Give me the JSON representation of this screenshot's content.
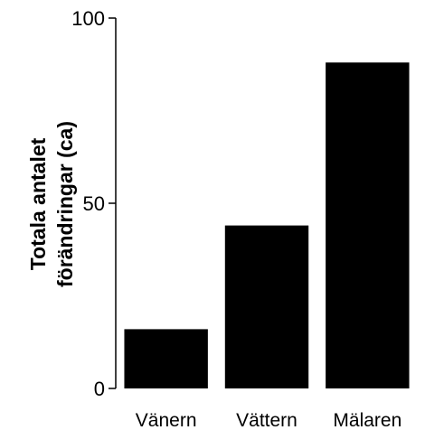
{
  "chart_data": {
    "type": "bar",
    "categories": [
      "Vänern",
      "Vättern",
      "Mälaren"
    ],
    "values": [
      16,
      44,
      88
    ],
    "ylabel": [
      "Totala antalet",
      "förändringar (ca)"
    ],
    "ylim": [
      0,
      100
    ],
    "yticks": [
      0,
      50,
      100
    ],
    "grid": false,
    "legend": "none",
    "bar_color": "#000000"
  }
}
